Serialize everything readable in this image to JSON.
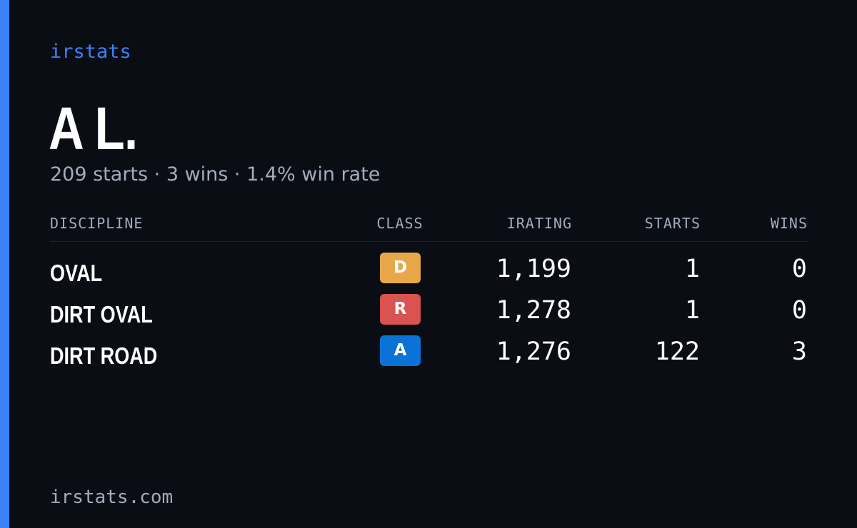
{
  "brand": "irstats",
  "colors": {
    "background": "#0a0d14",
    "accent": "#3b82f6",
    "muted_text": "#a3acbd",
    "class_D": "#e8a84a",
    "class_R": "#d9534f",
    "class_A": "#0b72d8"
  },
  "driver": {
    "name": "A L.",
    "summary": "209 starts · 3 wins · 1.4% win rate"
  },
  "table": {
    "headers": {
      "discipline": "DISCIPLINE",
      "class": "CLASS",
      "irating": "IRATING",
      "starts": "STARTS",
      "wins": "WINS"
    },
    "rows": [
      {
        "discipline": "OVAL",
        "class": "D",
        "irating": "1,199",
        "starts": "1",
        "wins": "0"
      },
      {
        "discipline": "DIRT OVAL",
        "class": "R",
        "irating": "1,278",
        "starts": "1",
        "wins": "0"
      },
      {
        "discipline": "DIRT ROAD",
        "class": "A",
        "irating": "1,276",
        "starts": "122",
        "wins": "3"
      }
    ]
  },
  "footer": "irstats.com"
}
